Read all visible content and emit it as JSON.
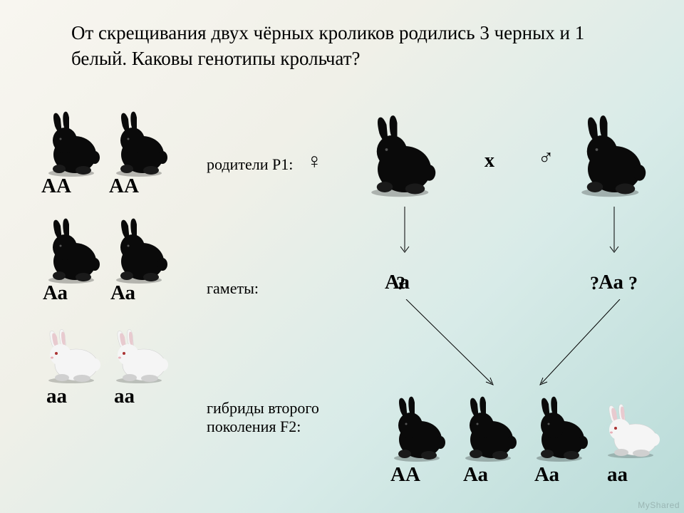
{
  "title": "От скрещивания двух чёрных кроликов родились 3 черных и 1 белый. Каковы генотипы крольчат?",
  "labels": {
    "parents": "родители P1:",
    "gametes": "гаметы:",
    "f2": "гибриды второго\nпоколения F2:"
  },
  "genotypes": {
    "AA": "АА",
    "Aa": "Аа",
    "aa": "аа",
    "q": "?"
  },
  "cross_symbol": "х",
  "female": "♀",
  "male": "♂",
  "watermark": "MyShared",
  "colors": {
    "black_body": "#0a0a0a",
    "black_shadow": "#1a1a1a",
    "white_body": "#f5f5f5",
    "white_shade": "#d0d0d0",
    "white_ear": "#e8cacf",
    "arrow": "#000000"
  },
  "left_grid": {
    "row1": [
      "AA",
      "AA"
    ],
    "row2": [
      "Aa",
      "Aa"
    ],
    "row3": [
      "aa",
      "aa"
    ]
  },
  "f2_offspring": [
    "AA",
    "Aa",
    "Aa",
    "aa"
  ]
}
